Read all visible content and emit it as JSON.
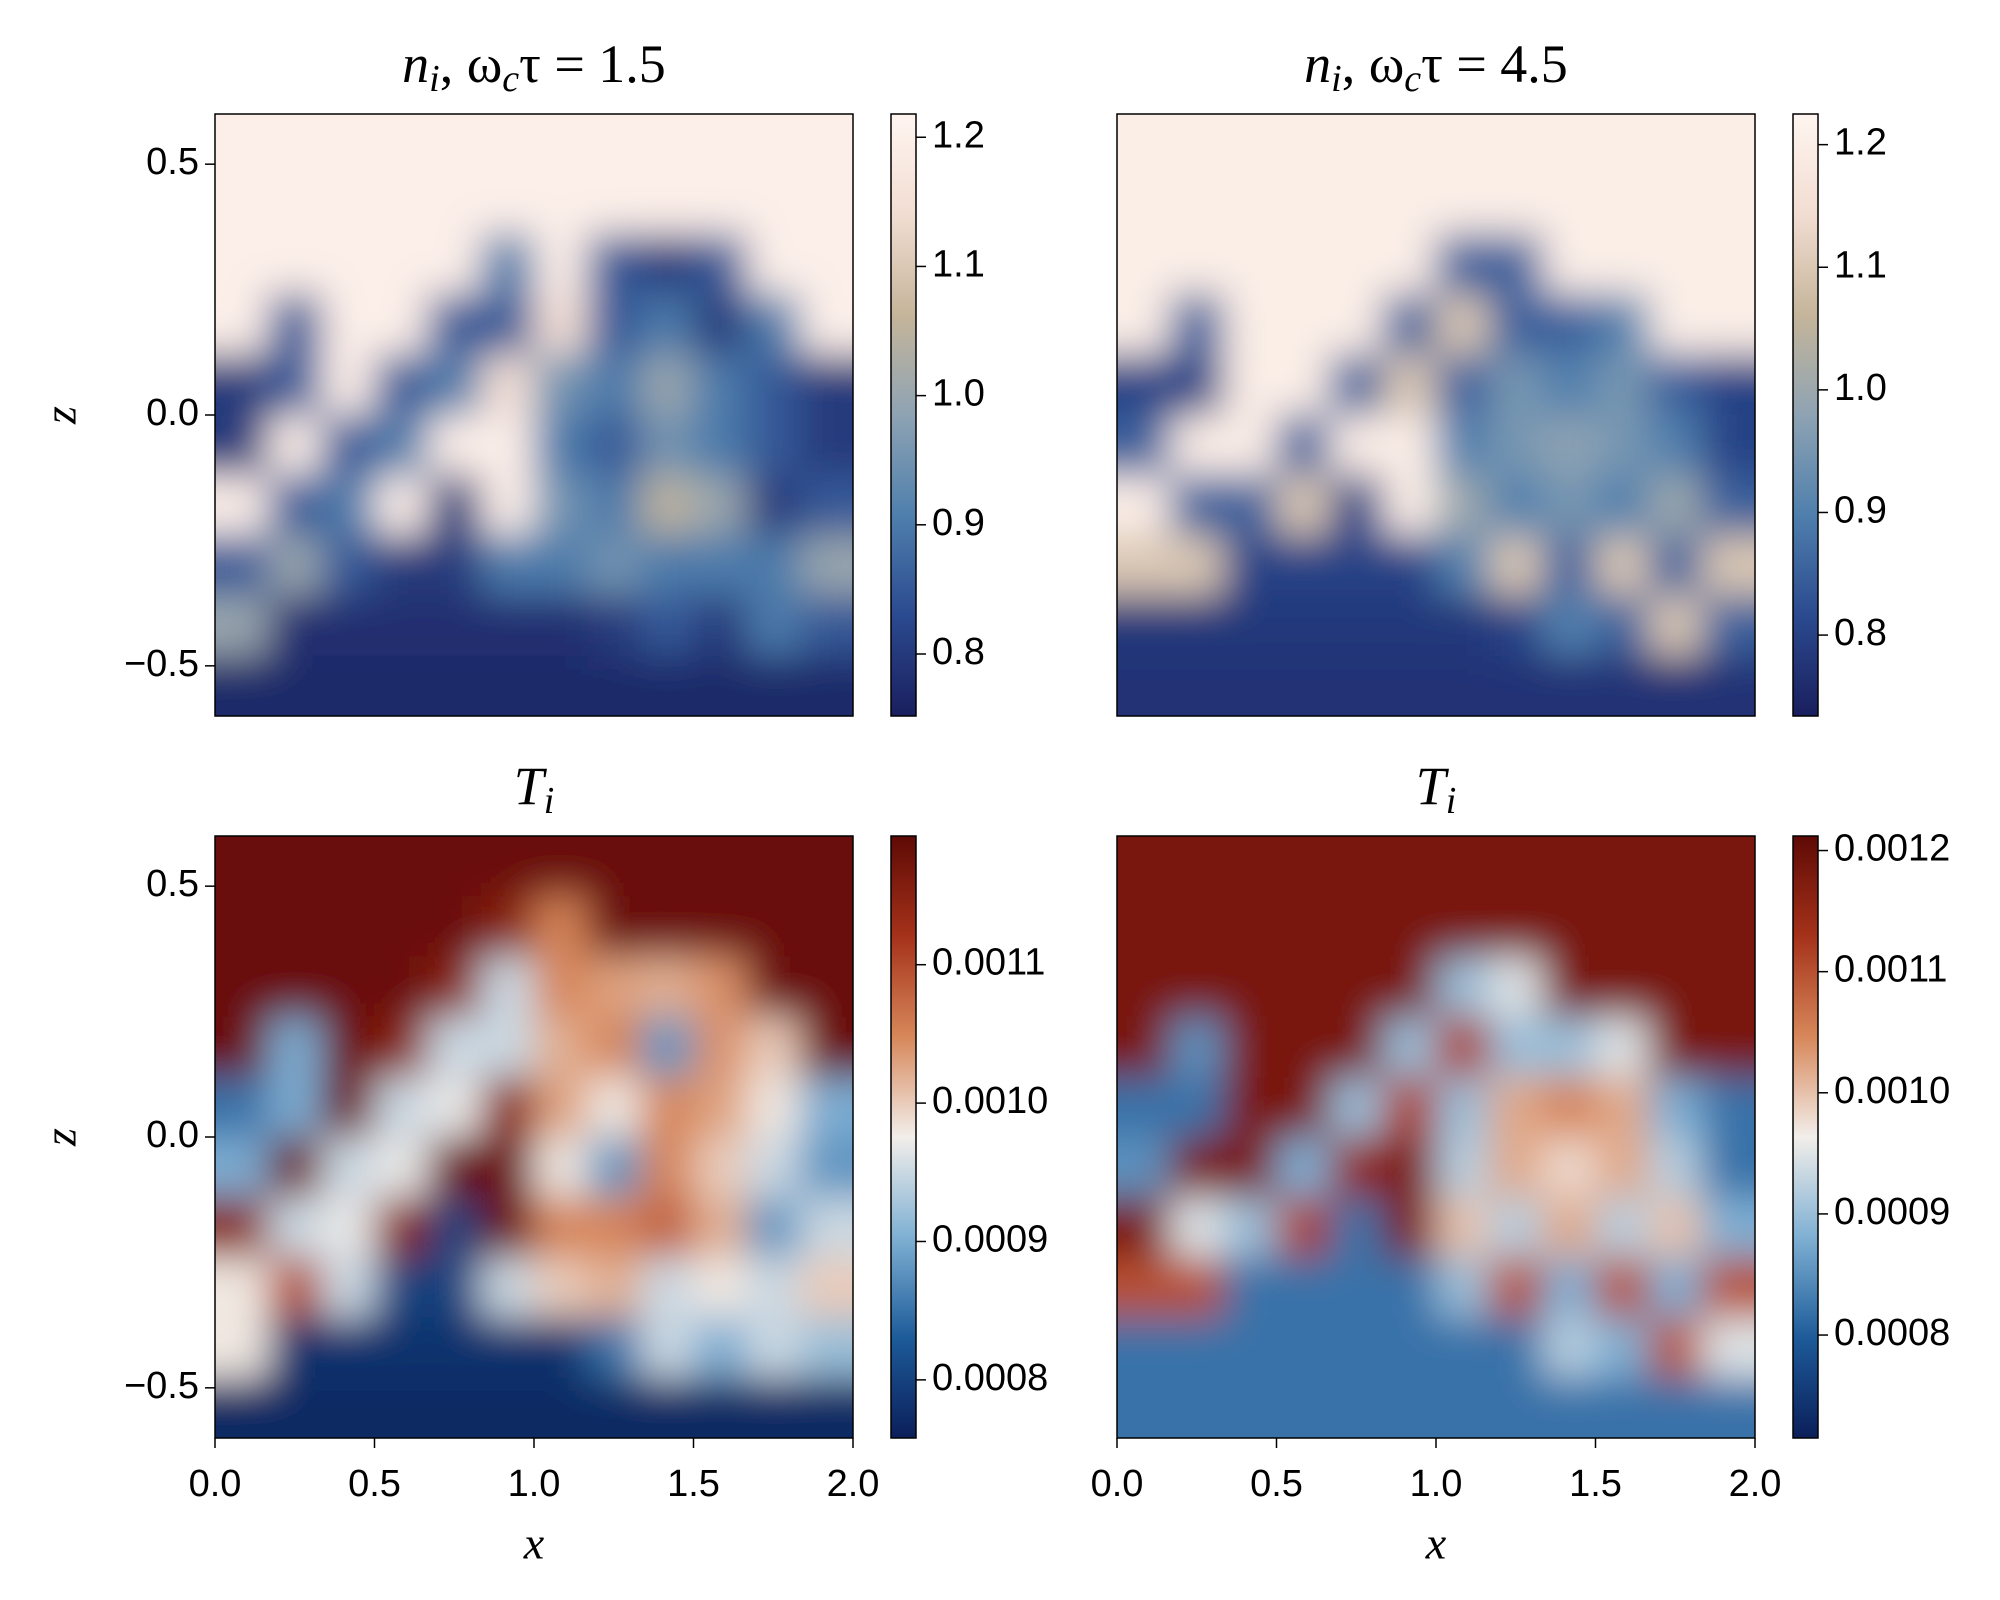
{
  "chart_data": [
    {
      "type": "heatmap",
      "title": [
        "n",
        "i",
        ", ω",
        "c",
        "τ = 1.5"
      ],
      "ylabel": "z",
      "xlim": [
        0,
        2
      ],
      "ylim": [
        -0.6,
        0.6
      ],
      "yticks": [
        {
          "value": -0.5,
          "label": "−0.5"
        },
        {
          "value": 0,
          "label": "0.0"
        },
        0.5
      ],
      "clim": [
        0.752,
        1.218
      ],
      "cticks": [
        0.8,
        0.9,
        {
          "value": 1,
          "label": "1.0"
        },
        1.1,
        1.2
      ],
      "colormap": [
        "#1a1f5e",
        "#2b4a8f",
        "#4f7fad",
        "#8ea3b3",
        "#c5b59a",
        "#f2ddd2",
        "#fff5f0"
      ],
      "z": [
        [
          1.2,
          1.2,
          1.2,
          1.2,
          1.2,
          1.2,
          1.2,
          1.2,
          1.2,
          1.2,
          1.2,
          1.2
        ],
        [
          1.2,
          1.2,
          1.2,
          1.2,
          1.2,
          1.2,
          1.2,
          1.2,
          1.2,
          1.2,
          1.2,
          1.2
        ],
        [
          1.2,
          1.2,
          1.2,
          1.2,
          1.2,
          0.9,
          1.2,
          0.85,
          0.8,
          0.85,
          1.2,
          1.2
        ],
        [
          1.2,
          0.85,
          1.2,
          1.2,
          0.85,
          0.85,
          1.15,
          0.85,
          0.9,
          0.8,
          0.9,
          1.2
        ],
        [
          0.8,
          0.85,
          1.2,
          0.85,
          0.9,
          1.15,
          0.95,
          0.9,
          1.0,
          0.9,
          0.85,
          0.8
        ],
        [
          0.8,
          1.2,
          0.85,
          0.9,
          1.2,
          1.2,
          0.9,
          0.85,
          0.95,
          0.9,
          0.85,
          0.8
        ],
        [
          1.2,
          0.85,
          0.9,
          1.2,
          0.8,
          1.2,
          0.95,
          0.9,
          1.05,
          1.0,
          0.8,
          0.85
        ],
        [
          0.85,
          1.0,
          0.85,
          0.8,
          0.8,
          0.9,
          0.9,
          0.95,
          0.9,
          0.9,
          0.9,
          1.0
        ],
        [
          1.0,
          0.78,
          0.78,
          0.78,
          0.78,
          0.78,
          0.78,
          0.8,
          0.85,
          0.8,
          0.9,
          0.85
        ],
        [
          0.77,
          0.77,
          0.77,
          0.77,
          0.77,
          0.77,
          0.77,
          0.77,
          0.77,
          0.77,
          0.77,
          0.77
        ]
      ]
    },
    {
      "type": "heatmap",
      "title": [
        "n",
        "i",
        ", ω",
        "c",
        "τ = 4.5"
      ],
      "xlim": [
        0,
        2
      ],
      "ylim": [
        -0.6,
        0.6
      ],
      "clim": [
        0.734,
        1.225
      ],
      "cticks": [
        0.8,
        0.9,
        {
          "value": 1,
          "label": "1.0"
        },
        1.1,
        1.2
      ],
      "colormap": [
        "#1a1f5e",
        "#2b4a8f",
        "#4f7fad",
        "#8ea3b3",
        "#c5b59a",
        "#f2ddd2",
        "#fff5f0"
      ],
      "z": [
        [
          1.2,
          1.2,
          1.2,
          1.2,
          1.2,
          1.2,
          1.2,
          1.2,
          1.2,
          1.2,
          1.2,
          1.2
        ],
        [
          1.2,
          1.2,
          1.2,
          1.2,
          1.2,
          1.2,
          1.2,
          1.2,
          1.2,
          1.2,
          1.2,
          1.2
        ],
        [
          1.2,
          1.2,
          1.2,
          1.2,
          1.2,
          1.2,
          0.85,
          0.85,
          1.2,
          1.2,
          1.2,
          1.2
        ],
        [
          1.2,
          0.85,
          1.2,
          1.2,
          1.2,
          0.85,
          1.1,
          0.85,
          0.85,
          0.9,
          1.2,
          1.2
        ],
        [
          0.8,
          0.8,
          1.2,
          1.2,
          0.85,
          1.1,
          0.85,
          0.95,
          0.9,
          0.95,
          0.85,
          0.8
        ],
        [
          0.85,
          1.2,
          1.2,
          0.85,
          1.2,
          1.2,
          0.9,
          0.95,
          0.98,
          0.95,
          0.9,
          0.8
        ],
        [
          1.2,
          0.85,
          0.85,
          1.1,
          0.8,
          1.2,
          1.0,
          0.9,
          0.95,
          0.9,
          1.0,
          0.85
        ],
        [
          1.1,
          1.1,
          0.8,
          0.8,
          0.8,
          0.8,
          0.9,
          1.1,
          0.85,
          1.1,
          0.85,
          1.1
        ],
        [
          0.78,
          0.78,
          0.78,
          0.78,
          0.78,
          0.78,
          0.78,
          0.8,
          0.9,
          0.85,
          1.1,
          0.85
        ],
        [
          0.77,
          0.77,
          0.77,
          0.77,
          0.77,
          0.77,
          0.77,
          0.77,
          0.77,
          0.77,
          0.77,
          0.77
        ]
      ]
    },
    {
      "type": "heatmap",
      "title": [
        "T",
        "i"
      ],
      "xlabel": "x",
      "ylabel": "z",
      "xlim": [
        0,
        2
      ],
      "ylim": [
        -0.6,
        0.6
      ],
      "xticks": [
        {
          "value": 0,
          "label": "0.0"
        },
        0.5,
        {
          "value": 1,
          "label": "1.0"
        },
        1.5,
        {
          "value": 2,
          "label": "2.0"
        }
      ],
      "yticks": [
        {
          "value": -0.5,
          "label": "−0.5"
        },
        {
          "value": 0,
          "label": "0.0"
        },
        0.5
      ],
      "clim": [
        0.000758,
        0.001193
      ],
      "cticks": [
        0.0008,
        0.0009,
        {
          "value": 0.001,
          "label": "0.0010"
        },
        0.0011
      ],
      "colormap": [
        "#0b1f5a",
        "#1d5b99",
        "#7fb0d3",
        "#f2eeea",
        "#d7875a",
        "#a5321a",
        "#5e0a05"
      ],
      "z": [
        [
          0.00118,
          0.00118,
          0.00118,
          0.00118,
          0.00118,
          0.00118,
          0.00118,
          0.00118,
          0.00118,
          0.00118,
          0.00118,
          0.00118
        ],
        [
          0.00118,
          0.00118,
          0.00118,
          0.00118,
          0.00118,
          0.00115,
          0.00105,
          0.00118,
          0.00118,
          0.00118,
          0.00118,
          0.00118
        ],
        [
          0.00118,
          0.00118,
          0.00118,
          0.00118,
          0.00115,
          0.00095,
          0.00105,
          0.00103,
          0.00102,
          0.00104,
          0.00118,
          0.00118
        ],
        [
          0.00118,
          0.0009,
          0.00118,
          0.00115,
          0.00095,
          0.00095,
          0.00102,
          0.00105,
          0.00088,
          0.00104,
          0.001,
          0.00118
        ],
        [
          0.00085,
          0.0009,
          0.00118,
          0.00095,
          0.00097,
          0.00115,
          0.00103,
          0.00098,
          0.00105,
          0.00103,
          0.00098,
          0.0009
        ],
        [
          0.0009,
          0.00118,
          0.00095,
          0.00097,
          0.00118,
          0.00118,
          0.00098,
          0.00088,
          0.00105,
          0.001,
          0.00095,
          0.00088
        ],
        [
          0.00115,
          0.00095,
          0.00097,
          0.00115,
          0.0008,
          0.00118,
          0.00105,
          0.00105,
          0.00108,
          0.00102,
          0.00088,
          0.00095
        ],
        [
          0.00098,
          0.0011,
          0.00095,
          0.0008,
          0.0008,
          0.00095,
          0.001,
          0.00102,
          0.00095,
          0.00098,
          0.00095,
          0.001
        ],
        [
          0.00098,
          0.00078,
          0.00078,
          0.00078,
          0.00078,
          0.00078,
          0.00078,
          0.00085,
          0.00095,
          0.0009,
          0.00095,
          0.00092
        ],
        [
          0.00077,
          0.00077,
          0.00077,
          0.00077,
          0.00077,
          0.00077,
          0.00077,
          0.00077,
          0.00077,
          0.00077,
          0.00077,
          0.00077
        ]
      ]
    },
    {
      "type": "heatmap",
      "title": [
        "T",
        "i"
      ],
      "xlabel": "x",
      "xlim": [
        0,
        2
      ],
      "ylim": [
        -0.6,
        0.6
      ],
      "xticks": [
        {
          "value": 0,
          "label": "0.0"
        },
        0.5,
        {
          "value": 1,
          "label": "1.0"
        },
        1.5,
        {
          "value": 2,
          "label": "2.0"
        }
      ],
      "clim": [
        0.000715,
        0.001212
      ],
      "cticks": [
        0.0008,
        0.0009,
        {
          "value": 0.001,
          "label": "0.0010"
        },
        0.0011,
        0.0012
      ],
      "colormap": [
        "#0b1f5a",
        "#1d5b99",
        "#7fb0d3",
        "#f2eeea",
        "#d7875a",
        "#a5321a",
        "#5e0a05"
      ],
      "z": [
        [
          0.00118,
          0.00118,
          0.00118,
          0.00118,
          0.00118,
          0.00118,
          0.00118,
          0.00118,
          0.00118,
          0.00118,
          0.00118,
          0.00118
        ],
        [
          0.00118,
          0.00118,
          0.00118,
          0.00118,
          0.00118,
          0.00118,
          0.00118,
          0.00118,
          0.00118,
          0.00118,
          0.00118,
          0.00118
        ],
        [
          0.00118,
          0.00118,
          0.00118,
          0.00118,
          0.00118,
          0.00118,
          0.0009,
          0.00095,
          0.00118,
          0.00118,
          0.00118,
          0.00118
        ],
        [
          0.00118,
          0.00085,
          0.00118,
          0.00118,
          0.00118,
          0.0009,
          0.00112,
          0.0009,
          0.0009,
          0.00095,
          0.00118,
          0.00118
        ],
        [
          0.00082,
          0.00082,
          0.00118,
          0.00118,
          0.0009,
          0.00112,
          0.0009,
          0.00102,
          0.00105,
          0.00102,
          0.00088,
          0.00082
        ],
        [
          0.00085,
          0.00118,
          0.00118,
          0.00088,
          0.00115,
          0.00118,
          0.00092,
          0.00102,
          0.00098,
          0.00102,
          0.00092,
          0.00082
        ],
        [
          0.00118,
          0.00095,
          0.0009,
          0.00112,
          0.00082,
          0.00118,
          0.001,
          0.00092,
          0.00102,
          0.00092,
          0.001,
          0.00088
        ],
        [
          0.0011,
          0.0011,
          0.00082,
          0.00082,
          0.00082,
          0.00082,
          0.0009,
          0.0011,
          0.00088,
          0.0011,
          0.00088,
          0.0011
        ],
        [
          0.00082,
          0.00082,
          0.00082,
          0.00082,
          0.00082,
          0.00082,
          0.00082,
          0.00082,
          0.00092,
          0.00088,
          0.0011,
          0.00095
        ],
        [
          0.00082,
          0.00082,
          0.00082,
          0.00082,
          0.00082,
          0.00082,
          0.00082,
          0.00082,
          0.00082,
          0.00082,
          0.00082,
          0.00082
        ]
      ]
    }
  ]
}
